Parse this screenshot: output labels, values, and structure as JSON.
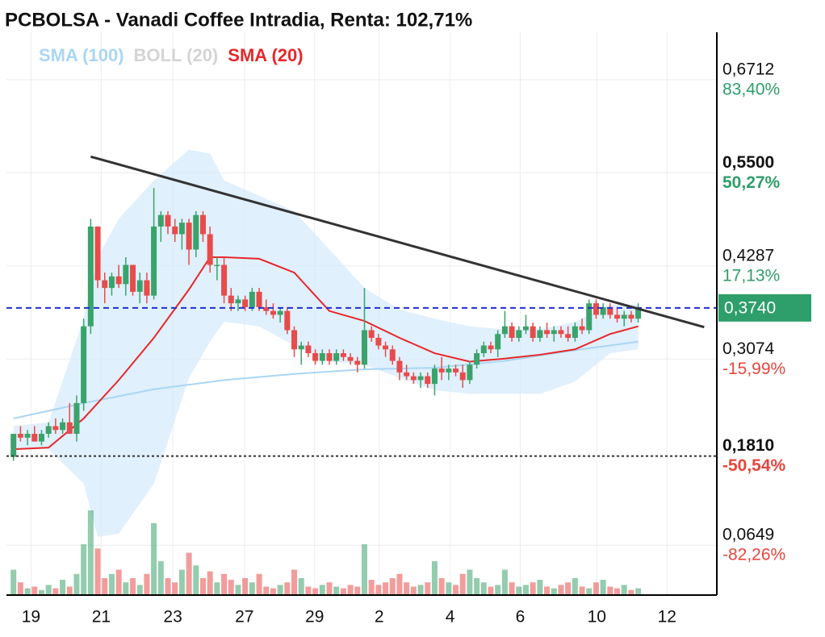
{
  "chart_data": {
    "type": "candlestick",
    "title": "PCBOLSA - Vanadi Coffee Intradia, Renta: 102,71%",
    "xlim": [
      -1,
      100.2
    ],
    "xticks": [
      {
        "value": 2.5,
        "label": "19"
      },
      {
        "value": 12.5,
        "label": "21"
      },
      {
        "value": 22.7,
        "label": "23"
      },
      {
        "value": 32.9,
        "label": "27"
      },
      {
        "value": 42.9,
        "label": "29"
      },
      {
        "value": 52.1,
        "label": "2"
      },
      {
        "value": 62.2,
        "label": "4"
      },
      {
        "value": 72.2,
        "label": "6"
      },
      {
        "value": 83.1,
        "label": "10"
      },
      {
        "value": 93.1,
        "label": "12"
      }
    ],
    "ylim": [
      0,
      0.733
    ],
    "yticks": [
      {
        "value": 0.6712,
        "label": "0,6712"
      },
      {
        "value": 0.55,
        "label": "0,5500",
        "bold": true
      },
      {
        "value": 0.4287,
        "label": "0,4287"
      },
      {
        "value": 0.3074,
        "label": "0,3074"
      },
      {
        "value": 0.181,
        "label": "0,1810",
        "bold": true
      },
      {
        "value": 0.0649,
        "label": "0,0649"
      }
    ],
    "ytick_returns": [
      {
        "value": 83.4,
        "label": "83,40%"
      },
      {
        "value": 50.27,
        "label": "50,27%"
      },
      {
        "value": 17.13,
        "label": "17,13%"
      },
      {
        "value": -15.99,
        "label": "-15,99%"
      },
      {
        "value": -50.54,
        "label": "-50,54%"
      },
      {
        "value": -82.26,
        "label": "-82,26%"
      }
    ],
    "grid": true,
    "up_color": "#3aa36b",
    "down_color": "#e84b4b",
    "last_price": {
      "value": 0.374,
      "label": "0,3740",
      "color": "#2e9e6a",
      "line_color": "#1f2fd0"
    },
    "reference_line": {
      "value": 0.181,
      "color": "#333333"
    },
    "trendline": {
      "x": [
        11,
        98.4
      ],
      "values": [
        0.571,
        0.349
      ],
      "color": "#333333"
    },
    "candles": [
      [
        0.18,
        0.21,
        0.175,
        0.21
      ],
      [
        0.21,
        0.22,
        0.2,
        0.205
      ],
      [
        0.205,
        0.215,
        0.195,
        0.21
      ],
      [
        0.21,
        0.22,
        0.2,
        0.2
      ],
      [
        0.2,
        0.215,
        0.195,
        0.21
      ],
      [
        0.21,
        0.225,
        0.205,
        0.22
      ],
      [
        0.22,
        0.23,
        0.21,
        0.215
      ],
      [
        0.215,
        0.23,
        0.21,
        0.225
      ],
      [
        0.225,
        0.25,
        0.215,
        0.21
      ],
      [
        0.21,
        0.26,
        0.2,
        0.25
      ],
      [
        0.25,
        0.36,
        0.24,
        0.35
      ],
      [
        0.35,
        0.49,
        0.34,
        0.48
      ],
      [
        0.48,
        0.48,
        0.4,
        0.41
      ],
      [
        0.41,
        0.42,
        0.38,
        0.4
      ],
      [
        0.4,
        0.42,
        0.39,
        0.415
      ],
      [
        0.415,
        0.43,
        0.4,
        0.405
      ],
      [
        0.405,
        0.44,
        0.39,
        0.43
      ],
      [
        0.43,
        0.43,
        0.39,
        0.395
      ],
      [
        0.395,
        0.42,
        0.38,
        0.41
      ],
      [
        0.41,
        0.42,
        0.38,
        0.39
      ],
      [
        0.39,
        0.53,
        0.385,
        0.48
      ],
      [
        0.48,
        0.5,
        0.46,
        0.495
      ],
      [
        0.495,
        0.5,
        0.47,
        0.48
      ],
      [
        0.48,
        0.49,
        0.46,
        0.47
      ],
      [
        0.47,
        0.49,
        0.45,
        0.485
      ],
      [
        0.485,
        0.49,
        0.43,
        0.45
      ],
      [
        0.45,
        0.5,
        0.44,
        0.495
      ],
      [
        0.495,
        0.5,
        0.46,
        0.47
      ],
      [
        0.47,
        0.48,
        0.42,
        0.43
      ],
      [
        0.43,
        0.44,
        0.41,
        0.43
      ],
      [
        0.43,
        0.44,
        0.38,
        0.39
      ],
      [
        0.39,
        0.4,
        0.37,
        0.38
      ],
      [
        0.38,
        0.39,
        0.37,
        0.385
      ],
      [
        0.385,
        0.39,
        0.37,
        0.375
      ],
      [
        0.375,
        0.4,
        0.37,
        0.395
      ],
      [
        0.395,
        0.4,
        0.37,
        0.375
      ],
      [
        0.375,
        0.385,
        0.365,
        0.37
      ],
      [
        0.37,
        0.38,
        0.36,
        0.365
      ],
      [
        0.365,
        0.375,
        0.355,
        0.37
      ],
      [
        0.37,
        0.375,
        0.34,
        0.345
      ],
      [
        0.345,
        0.35,
        0.31,
        0.32
      ],
      [
        0.32,
        0.33,
        0.3,
        0.325
      ],
      [
        0.325,
        0.33,
        0.31,
        0.315
      ],
      [
        0.315,
        0.32,
        0.3,
        0.305
      ],
      [
        0.305,
        0.32,
        0.3,
        0.315
      ],
      [
        0.315,
        0.32,
        0.3,
        0.305
      ],
      [
        0.305,
        0.32,
        0.3,
        0.315
      ],
      [
        0.315,
        0.32,
        0.305,
        0.31
      ],
      [
        0.31,
        0.315,
        0.3,
        0.305
      ],
      [
        0.305,
        0.31,
        0.29,
        0.3
      ],
      [
        0.3,
        0.4,
        0.295,
        0.345
      ],
      [
        0.345,
        0.35,
        0.33,
        0.335
      ],
      [
        0.335,
        0.34,
        0.32,
        0.325
      ],
      [
        0.325,
        0.33,
        0.31,
        0.32
      ],
      [
        0.32,
        0.325,
        0.3,
        0.305
      ],
      [
        0.305,
        0.31,
        0.28,
        0.29
      ],
      [
        0.29,
        0.3,
        0.28,
        0.285
      ],
      [
        0.285,
        0.29,
        0.275,
        0.28
      ],
      [
        0.28,
        0.29,
        0.27,
        0.285
      ],
      [
        0.285,
        0.29,
        0.27,
        0.275
      ],
      [
        0.275,
        0.3,
        0.26,
        0.295
      ],
      [
        0.295,
        0.31,
        0.28,
        0.29
      ],
      [
        0.29,
        0.3,
        0.28,
        0.295
      ],
      [
        0.295,
        0.3,
        0.285,
        0.29
      ],
      [
        0.29,
        0.3,
        0.27,
        0.28
      ],
      [
        0.28,
        0.305,
        0.275,
        0.3
      ],
      [
        0.3,
        0.32,
        0.295,
        0.315
      ],
      [
        0.315,
        0.33,
        0.31,
        0.325
      ],
      [
        0.325,
        0.33,
        0.315,
        0.32
      ],
      [
        0.32,
        0.345,
        0.31,
        0.34
      ],
      [
        0.34,
        0.37,
        0.335,
        0.35
      ],
      [
        0.35,
        0.355,
        0.33,
        0.335
      ],
      [
        0.335,
        0.35,
        0.33,
        0.345
      ],
      [
        0.345,
        0.365,
        0.34,
        0.35
      ],
      [
        0.35,
        0.355,
        0.33,
        0.335
      ],
      [
        0.335,
        0.35,
        0.33,
        0.345
      ],
      [
        0.345,
        0.355,
        0.335,
        0.34
      ],
      [
        0.34,
        0.35,
        0.33,
        0.345
      ],
      [
        0.345,
        0.35,
        0.335,
        0.34
      ],
      [
        0.34,
        0.35,
        0.33,
        0.335
      ],
      [
        0.335,
        0.355,
        0.33,
        0.35
      ],
      [
        0.35,
        0.36,
        0.34,
        0.345
      ],
      [
        0.345,
        0.385,
        0.34,
        0.38
      ],
      [
        0.38,
        0.385,
        0.36,
        0.365
      ],
      [
        0.365,
        0.38,
        0.36,
        0.375
      ],
      [
        0.375,
        0.38,
        0.36,
        0.365
      ],
      [
        0.365,
        0.375,
        0.355,
        0.36
      ],
      [
        0.36,
        0.37,
        0.35,
        0.365
      ],
      [
        0.365,
        0.37,
        0.355,
        0.36
      ],
      [
        0.36,
        0.38,
        0.355,
        0.374
      ]
    ],
    "vlim": [
      0,
      100
    ],
    "volume": [
      30,
      15,
      8,
      10,
      6,
      12,
      8,
      18,
      10,
      25,
      60,
      100,
      55,
      20,
      25,
      30,
      15,
      20,
      12,
      25,
      85,
      40,
      20,
      15,
      30,
      50,
      35,
      20,
      28,
      15,
      25,
      18,
      12,
      20,
      15,
      25,
      10,
      8,
      12,
      15,
      30,
      20,
      10,
      8,
      12,
      15,
      10,
      8,
      12,
      10,
      60,
      18,
      12,
      15,
      20,
      25,
      15,
      10,
      12,
      15,
      40,
      20,
      15,
      12,
      25,
      30,
      20,
      15,
      10,
      12,
      30,
      15,
      10,
      12,
      15,
      18,
      10,
      8,
      12,
      15,
      20,
      10,
      8,
      15,
      18,
      10,
      8,
      12,
      6,
      8
    ],
    "series": [
      {
        "name": "SMA (100)",
        "color": "#a9d6f5",
        "x": [
          0,
          10,
          20,
          30,
          40,
          50,
          60,
          70,
          80,
          89
        ],
        "values": [
          0.23,
          0.25,
          0.268,
          0.28,
          0.288,
          0.294,
          0.296,
          0.305,
          0.319,
          0.33
        ]
      },
      {
        "name": "BOLL (20)",
        "color": "#d4d4d4",
        "fill": "#d6ebfb",
        "x": [
          0,
          5,
          10,
          12,
          15,
          20,
          25,
          28,
          30,
          35,
          40,
          45,
          50,
          55,
          60,
          65,
          70,
          75,
          80,
          85,
          89
        ],
        "upper": [
          0.22,
          0.225,
          0.36,
          0.44,
          0.49,
          0.54,
          0.58,
          0.575,
          0.54,
          0.52,
          0.5,
          0.45,
          0.4,
          0.372,
          0.36,
          0.35,
          0.346,
          0.346,
          0.356,
          0.378,
          0.378
        ],
        "lower": [
          0.19,
          0.19,
          0.145,
          0.076,
          0.08,
          0.145,
          0.283,
          0.33,
          0.356,
          0.35,
          0.325,
          0.304,
          0.3,
          0.283,
          0.267,
          0.262,
          0.262,
          0.262,
          0.278,
          0.315,
          0.32
        ]
      },
      {
        "name": "SMA (20)",
        "color": "#e8262b",
        "x": [
          0,
          5,
          10,
          12,
          15,
          20,
          25,
          28,
          30,
          35,
          40,
          45,
          50,
          55,
          60,
          65,
          70,
          75,
          80,
          85,
          89
        ],
        "values": [
          0.19,
          0.192,
          0.23,
          0.25,
          0.28,
          0.335,
          0.398,
          0.44,
          0.44,
          0.438,
          0.42,
          0.37,
          0.357,
          0.335,
          0.315,
          0.304,
          0.308,
          0.313,
          0.32,
          0.34,
          0.35
        ]
      }
    ]
  }
}
